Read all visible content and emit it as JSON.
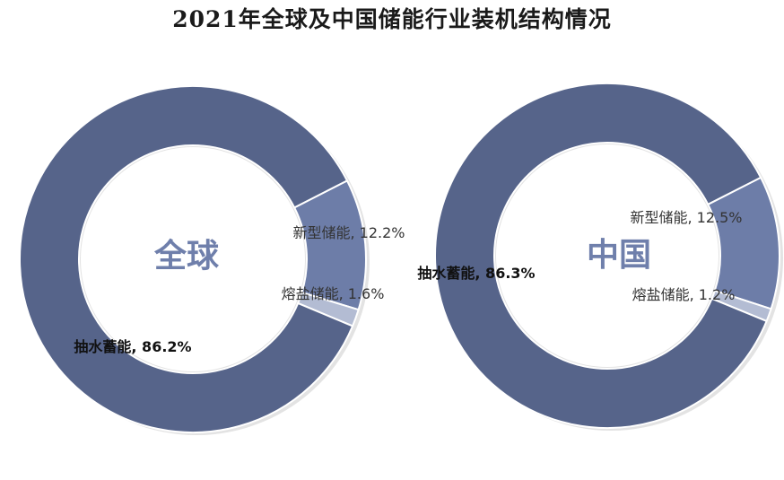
{
  "chart_data": [
    {
      "type": "pie",
      "title": "2021年全球及中国储能行业装机结构情况",
      "center_label": "全球",
      "slices": [
        {
          "label": "抽水蓄能, 86.2%",
          "name": "抽水蓄能",
          "value": 86.2,
          "color": "#56648a"
        },
        {
          "label": "新型储能, 12.2%",
          "name": "新型储能",
          "value": 12.2,
          "color": "#6d7da8"
        },
        {
          "label": "熔盐储能, 1.6%",
          "name": "熔盐储能",
          "value": 1.6,
          "color": "#b3bcd3"
        }
      ]
    },
    {
      "type": "pie",
      "center_label": "中国",
      "slices": [
        {
          "label": "抽水蓄能, 86.3%",
          "name": "抽水蓄能",
          "value": 86.3,
          "color": "#56648a"
        },
        {
          "label": "新型储能, 12.5%",
          "name": "新型储能",
          "value": 12.5,
          "color": "#6d7da8"
        },
        {
          "label": "熔盐储能, 1.2%",
          "name": "熔盐储能",
          "value": 1.2,
          "color": "#b3bcd3"
        }
      ]
    }
  ],
  "colors": {
    "center_text": "#6f7fab",
    "separator": "#ffffff"
  }
}
